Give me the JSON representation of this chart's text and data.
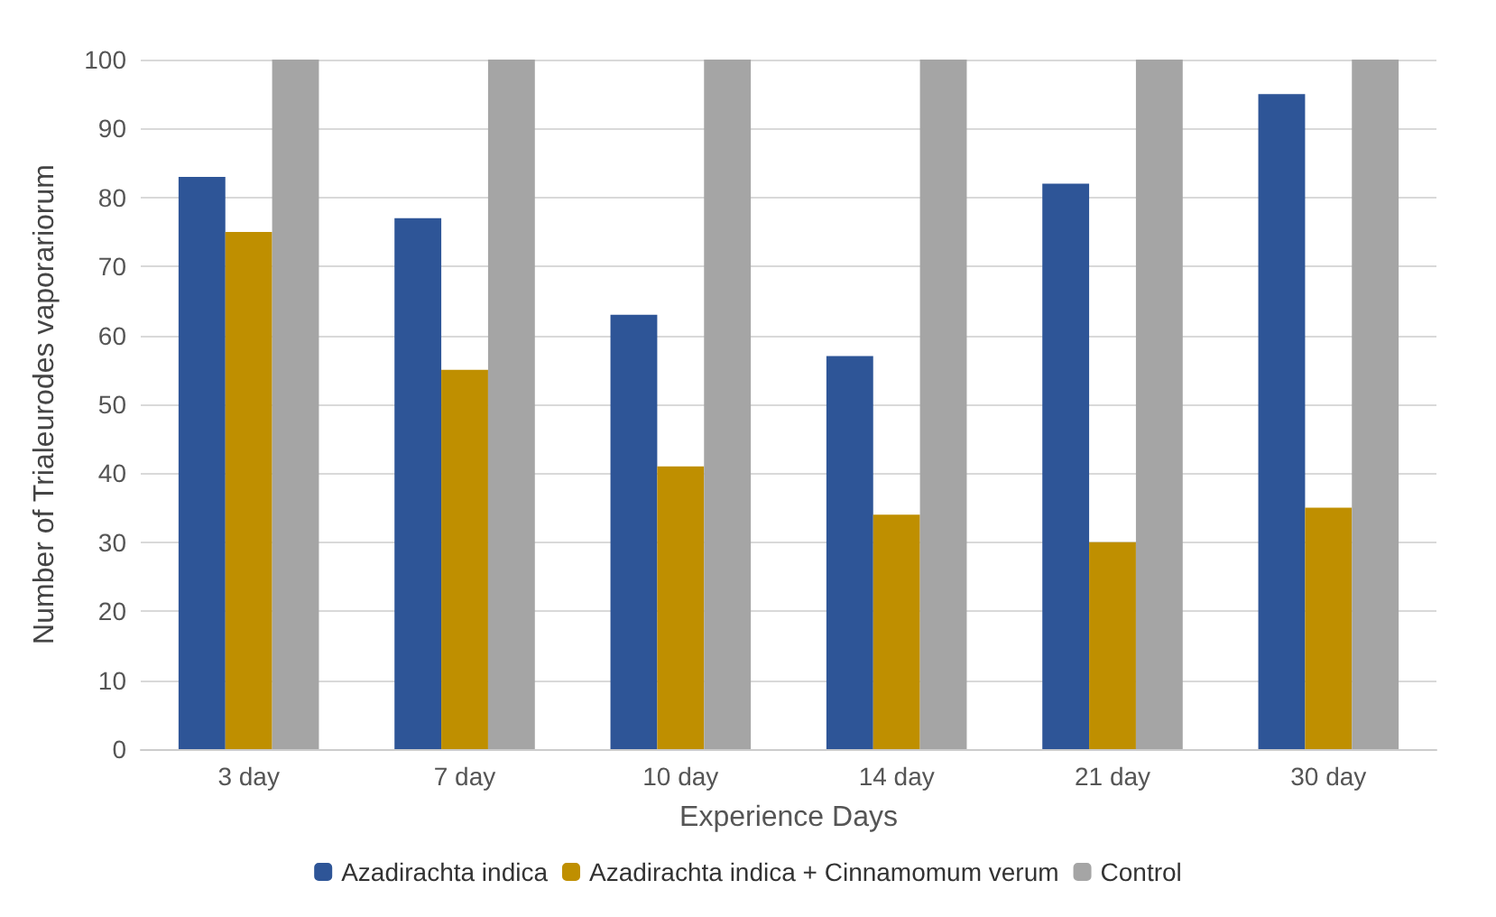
{
  "chart_data": {
    "type": "bar",
    "xlabel": "Experience Days",
    "ylabel": "Number of Trialeurodes vaporariorum",
    "categories": [
      "3 day",
      "7 day",
      "10 day",
      "14 day",
      "21 day",
      "30 day"
    ],
    "series": [
      {
        "name": "Azadirachta indica",
        "color": "#2e5597",
        "values": [
          83,
          77,
          63,
          57,
          82,
          95
        ]
      },
      {
        "name": "Azadirachta indica + Cinnamomum verum",
        "color": "#bf8f00",
        "values": [
          75,
          55,
          41,
          34,
          30,
          35
        ]
      },
      {
        "name": "Control",
        "color": "#a5a5a5",
        "values": [
          100,
          100,
          100,
          100,
          100,
          100
        ]
      }
    ],
    "ylim": [
      0,
      100
    ],
    "yticks": [
      0,
      10,
      20,
      30,
      40,
      50,
      60,
      70,
      80,
      90,
      100
    ],
    "grid": "y",
    "legend": "bottom"
  }
}
